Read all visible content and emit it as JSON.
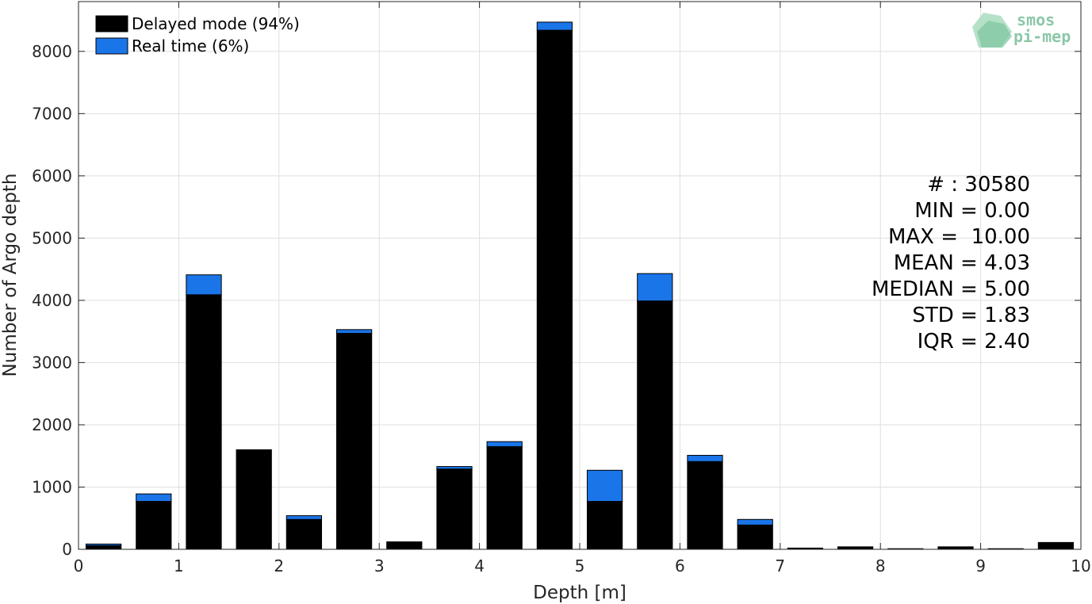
{
  "chart_data": {
    "type": "bar",
    "stacked": true,
    "xlabel": "Depth [m]",
    "ylabel": "Number of Argo depth",
    "xlim": [
      0,
      10
    ],
    "ylim": [
      0,
      8800
    ],
    "x_ticks": [
      "0",
      "1",
      "2",
      "3",
      "4",
      "5",
      "6",
      "7",
      "8",
      "9",
      "10"
    ],
    "y_ticks": [
      "0",
      "1000",
      "2000",
      "3000",
      "4000",
      "5000",
      "6000",
      "7000",
      "8000"
    ],
    "grid": true,
    "legend_position": "top-left",
    "bin_width": 0.35,
    "x": [
      0.25,
      0.75,
      1.25,
      1.75,
      2.25,
      2.75,
      3.25,
      3.75,
      4.25,
      4.75,
      5.25,
      5.75,
      6.25,
      6.75,
      7.25,
      7.75,
      8.25,
      8.75,
      9.25,
      9.75
    ],
    "series": [
      {
        "name": "Delayed mode (94%)",
        "color": "#000000",
        "values": [
          60,
          770,
          4090,
          1600,
          480,
          3470,
          120,
          1290,
          1650,
          8340,
          770,
          3990,
          1410,
          390,
          20,
          40,
          10,
          40,
          10,
          110
        ]
      },
      {
        "name": "Real time (6%)",
        "color": "#1a75e8",
        "values": [
          25,
          120,
          320,
          0,
          60,
          60,
          0,
          40,
          80,
          130,
          500,
          440,
          100,
          90,
          0,
          0,
          0,
          0,
          0,
          0
        ]
      }
    ],
    "stats": [
      "# : 30580",
      "MIN = 0.00",
      "MAX =  10.00",
      "MEAN = 4.03",
      "MEDIAN = 5.00",
      "STD = 1.83",
      "IQR = 2.40"
    ]
  },
  "logo": {
    "line1": "smos",
    "line2": "pi-mep",
    "color": "#8cc7a8"
  }
}
